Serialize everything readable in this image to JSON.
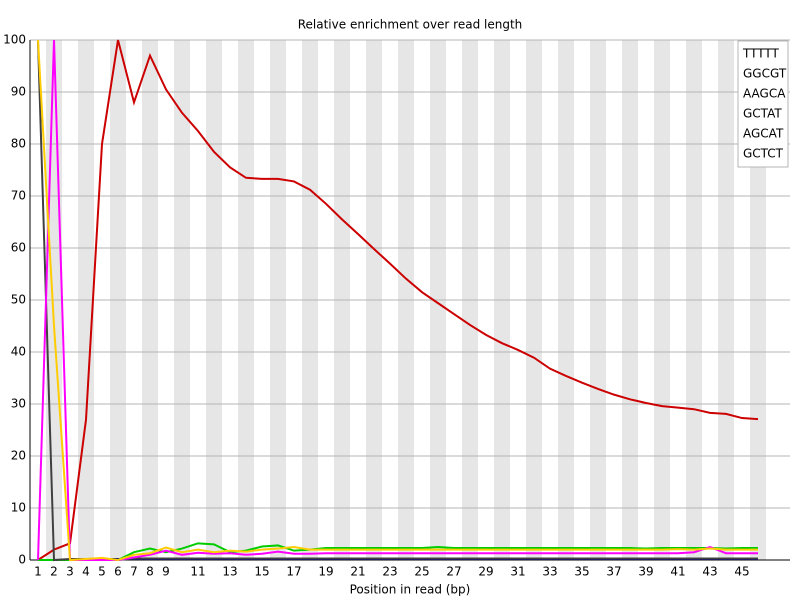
{
  "chart_data": {
    "type": "line",
    "title": "Relative enrichment over read length",
    "x_label": "Position in read (bp)",
    "categories": [
      "1",
      "2",
      "3",
      "4",
      "5",
      "6",
      "7",
      "8",
      "9",
      null,
      "11",
      null,
      "13",
      null,
      "15",
      null,
      "17",
      null,
      "19",
      null,
      "21",
      null,
      "23",
      null,
      "25",
      null,
      "27",
      null,
      "29",
      null,
      "31",
      null,
      "33",
      null,
      "35",
      null,
      "37",
      null,
      "39",
      null,
      "41",
      null,
      "43",
      null,
      "45",
      null
    ],
    "ylim": [
      0,
      100
    ],
    "yticks": [
      0,
      10,
      20,
      30,
      40,
      50,
      60,
      70,
      80,
      90,
      100
    ],
    "grid": true,
    "legend": "top-right",
    "series": [
      {
        "name": "TTTTT",
        "color": "#cc0000",
        "values": [
          0,
          2,
          3.2,
          27,
          80,
          100,
          88,
          97,
          90.5,
          86,
          82.5,
          78.5,
          75.5,
          73.5,
          73.3,
          73.3,
          72.8,
          71.2,
          68.5,
          65.5,
          62.7,
          59.8,
          57,
          54.1,
          51.5,
          49.4,
          47.3,
          45.2,
          43.3,
          41.7,
          40.4,
          38.9,
          36.8,
          35.4,
          34.1,
          32.9,
          31.8,
          30.9,
          30.2,
          29.6,
          29.3,
          29,
          28.3,
          28.1,
          27.3,
          27.1
        ]
      },
      {
        "name": "GGCGT",
        "color": "#000080",
        "values": [
          0,
          0,
          0,
          0.2,
          0.2,
          0.2,
          0.2,
          0.2,
          0.2,
          0.2,
          0.2,
          0.2,
          0.2,
          0.2,
          0.2,
          0.2,
          0.2,
          0.2,
          0.2,
          0.2,
          0.2,
          0.2,
          0.2,
          0.2,
          0.2,
          0.2,
          0.2,
          0.2,
          0.2,
          0.2,
          0.2,
          0.2,
          0.2,
          0.2,
          0.2,
          0.2,
          0.2,
          0.2,
          0.2,
          0.2,
          0.2,
          0.2,
          0.2,
          0.2,
          0.2,
          0.2
        ]
      },
      {
        "name": "AAGCA",
        "color": "#00cc00",
        "values": [
          0,
          0,
          0,
          0.2,
          0.3,
          0,
          1.5,
          2.2,
          1.5,
          2.2,
          3.2,
          3,
          1.5,
          1.8,
          2.6,
          2.8,
          1.8,
          2,
          2.3,
          2.3,
          2.3,
          2.3,
          2.3,
          2.3,
          2.3,
          2.5,
          2.3,
          2.3,
          2.3,
          2.3,
          2.3,
          2.3,
          2.3,
          2.3,
          2.3,
          2.3,
          2.3,
          2.3,
          2.2,
          2.3,
          2.3,
          2.3,
          2.3,
          2.2,
          2.3,
          2.3
        ]
      },
      {
        "name": "GCTAT",
        "color": "#404040",
        "values": [
          100,
          0,
          0.2,
          0.2,
          0.2,
          0,
          0.3,
          0.3,
          0.3,
          0.3,
          0.3,
          0.3,
          0.3,
          0.3,
          0.3,
          0.3,
          0.3,
          0.3,
          0.3,
          0.3,
          0.3,
          0.3,
          0.3,
          0.3,
          0.3,
          0.3,
          0.3,
          0.3,
          0.3,
          0.3,
          0.3,
          0.3,
          0.3,
          0.3,
          0.3,
          0.3,
          0.3,
          0.3,
          0.3,
          0.3,
          0.3,
          0.3,
          0.3,
          0.3,
          0.3,
          0.3
        ]
      },
      {
        "name": "AGCAT",
        "color": "#ff00ff",
        "values": [
          0,
          100,
          0,
          0,
          0,
          0,
          0.5,
          1,
          1.8,
          1,
          1.4,
          1.2,
          1.3,
          1,
          1.2,
          1.6,
          1.2,
          1.2,
          1.3,
          1.3,
          1.3,
          1.3,
          1.3,
          1.3,
          1.3,
          1.3,
          1.3,
          1.3,
          1.3,
          1.3,
          1.3,
          1.3,
          1.3,
          1.3,
          1.3,
          1.3,
          1.3,
          1.3,
          1.3,
          1.3,
          1.3,
          1.5,
          2.5,
          1.3,
          1.3,
          1.3
        ]
      },
      {
        "name": "GCTCT",
        "color": "#ffcc00",
        "values": [
          100,
          45,
          0,
          0.2,
          0.4,
          0,
          1,
          1.3,
          2.4,
          1.5,
          2,
          1.5,
          1.8,
          1.6,
          2,
          2.2,
          2.5,
          2,
          2,
          2,
          2,
          2,
          2,
          2,
          2,
          2,
          2,
          2,
          2,
          2,
          2,
          2,
          2,
          2,
          2,
          2,
          2,
          2,
          2,
          2,
          2.1,
          2,
          2.2,
          2,
          2,
          2
        ]
      }
    ]
  }
}
